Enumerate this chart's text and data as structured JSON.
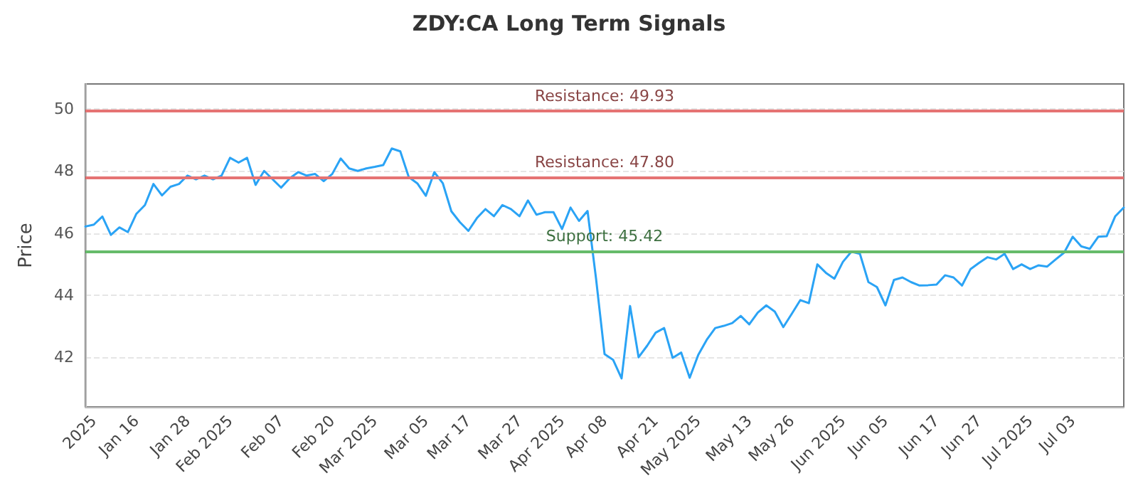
{
  "chart_data": {
    "type": "line",
    "title": "ZDY:CA Long Term Signals",
    "ylabel": "Price",
    "categories": [
      null,
      "2025",
      null,
      null,
      null,
      null,
      "Jan 16",
      null,
      null,
      null,
      null,
      null,
      "Jan 28",
      null,
      null,
      null,
      null,
      "Feb 2025",
      null,
      null,
      null,
      null,
      null,
      "Feb 07",
      null,
      null,
      null,
      null,
      null,
      "Feb 20",
      null,
      null,
      null,
      null,
      "Mar 2025",
      null,
      null,
      null,
      null,
      null,
      "Mar 05",
      null,
      null,
      null,
      null,
      "Mar 17",
      null,
      null,
      null,
      null,
      null,
      "Mar 27",
      null,
      null,
      null,
      null,
      "Apr 2025",
      null,
      null,
      null,
      null,
      "Apr 08",
      null,
      null,
      null,
      null,
      null,
      "Apr 21",
      null,
      null,
      null,
      null,
      "May 2025",
      null,
      null,
      null,
      null,
      null,
      "May 13",
      null,
      null,
      null,
      null,
      "May 26",
      null,
      null,
      null,
      null,
      null,
      "Jun 2025",
      null,
      null,
      null,
      null,
      "Jun 05",
      null,
      null,
      null,
      null,
      null,
      "Jun 17",
      null,
      null,
      null,
      null,
      "Jun 27",
      null,
      null,
      null,
      null,
      null,
      "Jul 2025",
      null,
      null,
      null,
      null,
      "Jul 03",
      null,
      null,
      null,
      null,
      null,
      null
    ],
    "series": [
      {
        "color": "#2aa3f5",
        "values": [
          46.21,
          46.27,
          46.53,
          45.94,
          46.18,
          46.03,
          46.62,
          46.9,
          47.58,
          47.21,
          47.49,
          47.58,
          47.85,
          47.73,
          47.85,
          47.73,
          47.85,
          48.42,
          48.27,
          48.42,
          47.55,
          48.0,
          47.73,
          47.46,
          47.76,
          47.96,
          47.85,
          47.9,
          47.67,
          47.9,
          48.4,
          48.08,
          48.0,
          48.08,
          48.13,
          48.19,
          48.72,
          48.63,
          47.8,
          47.6,
          47.2,
          47.96,
          47.6,
          46.7,
          46.35,
          46.07,
          46.48,
          46.77,
          46.54,
          46.9,
          46.77,
          46.54,
          47.05,
          46.59,
          46.67,
          46.67,
          46.13,
          46.82,
          46.39,
          46.71,
          44.53,
          42.1,
          41.92,
          41.32,
          43.65,
          42.0,
          42.37,
          42.79,
          42.94,
          41.98,
          42.15,
          41.34,
          42.07,
          42.56,
          42.94,
          43.01,
          43.1,
          43.33,
          43.06,
          43.44,
          43.67,
          43.47,
          42.97,
          43.4,
          43.84,
          43.74,
          44.99,
          44.72,
          44.53,
          45.07,
          45.4,
          45.33,
          44.42,
          44.26,
          43.67,
          44.49,
          44.57,
          44.42,
          44.31,
          44.32,
          44.34,
          44.64,
          44.57,
          44.31,
          44.84,
          45.04,
          45.22,
          45.15,
          45.33,
          44.84,
          44.99,
          44.84,
          44.96,
          44.92,
          45.15,
          45.37,
          45.88,
          45.57,
          45.49,
          45.88,
          45.9,
          46.54,
          46.82
        ]
      }
    ],
    "ylim": [
      40.4,
      50.8
    ],
    "yticks": [
      42,
      44,
      46,
      48,
      50
    ],
    "grid": "y",
    "marker": "none",
    "line_style": "solid",
    "ref_lines": [
      {
        "axis": "y",
        "value": 49.93,
        "label": "Resistance: 49.93",
        "color": "#e57373"
      },
      {
        "axis": "y",
        "value": 47.8,
        "label": "Resistance: 47.80",
        "color": "#e57373"
      },
      {
        "axis": "y",
        "value": 45.42,
        "label": "Support: 45.42",
        "color": "#66bb6a"
      }
    ]
  }
}
